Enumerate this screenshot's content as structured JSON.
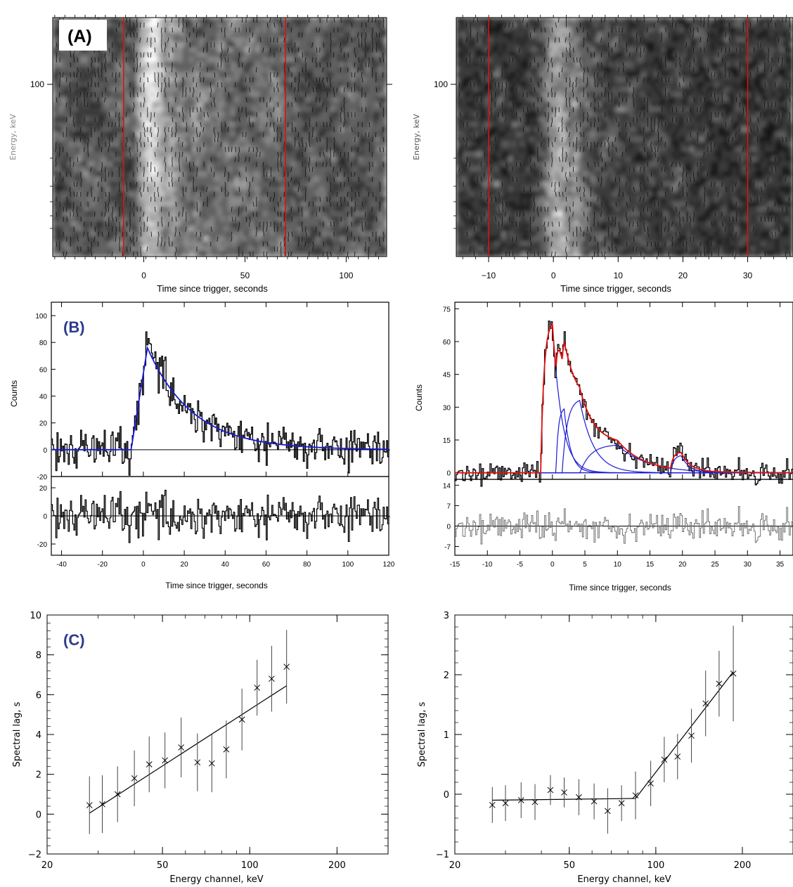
{
  "panels": {
    "A": "(A)",
    "B": "(B)",
    "C": "(C)"
  },
  "colors": {
    "marker_line": "#e01010",
    "fit_blue": "#1a1ad8",
    "fit_red": "#e01010",
    "panel_label": "#2e3a8c",
    "frame": "#000000",
    "axis_text_light": "#888888"
  },
  "chart_data": [
    {
      "id": "A-left",
      "type": "heatmap",
      "xlabel": "Time since trigger, seconds",
      "ylabel": "Energy, keV",
      "x_ticks": [
        "0",
        "50",
        "100"
      ],
      "y_ticks": [
        "100"
      ],
      "xlim": [
        -45,
        120
      ],
      "markers_x": [
        -10,
        70
      ],
      "notes": "energy vs time map, bright emission from 0 to ~25 s"
    },
    {
      "id": "A-right",
      "type": "heatmap",
      "xlabel": "Time since trigger, seconds",
      "ylabel": "Energy, keV",
      "x_ticks": [
        "−10",
        "0",
        "10",
        "20",
        "30"
      ],
      "y_ticks": [
        "100"
      ],
      "xlim": [
        -15,
        37
      ],
      "markers_x": [
        -10,
        30
      ]
    },
    {
      "id": "B-left",
      "type": "line",
      "xlabel": "Time since trigger, seconds",
      "ylabel": "Counts",
      "x_ticks": [
        "-40",
        "-20",
        "0",
        "20",
        "40",
        "60",
        "80",
        "100",
        "120"
      ],
      "y_ticks_main": [
        "-20",
        "0",
        "20",
        "40",
        "60",
        "80",
        "100"
      ],
      "y_ticks_resid": [
        "-20",
        "0",
        "20"
      ],
      "xlim": [
        -45,
        120
      ],
      "ylim": [
        -20,
        110
      ],
      "fit_model": {
        "onset": -6,
        "peak": 2,
        "peak_value": 76,
        "decay_tau": 22
      }
    },
    {
      "id": "B-right",
      "type": "line",
      "xlabel": "Time since trigger, seconds",
      "ylabel": "Counts",
      "x_ticks": [
        "-15",
        "-10",
        "-5",
        "0",
        "5",
        "10",
        "15",
        "20",
        "25",
        "30",
        "35"
      ],
      "y_ticks_main": [
        "0",
        "15",
        "30",
        "45",
        "60",
        "75"
      ],
      "y_ticks_resid": [
        "-7",
        "0",
        "7",
        "14"
      ],
      "xlim": [
        -15,
        37
      ],
      "ylim": [
        -3,
        78
      ],
      "pulses": [
        {
          "t0": 0.0,
          "amp": 70,
          "w": 1.0
        },
        {
          "t0": 1.8,
          "amp": 30,
          "w": 0.7
        },
        {
          "t0": 4.2,
          "amp": 34,
          "w": 1.5
        },
        {
          "t0": 10.0,
          "amp": 13,
          "w": 3.2
        },
        {
          "t0": 19.8,
          "amp": 8,
          "w": 0.9
        }
      ]
    },
    {
      "id": "C-left",
      "type": "scatter",
      "xlabel": "Energy channel, keV",
      "ylabel": "Spectral lag, s",
      "x_scale": "log",
      "xlim": [
        20,
        300
      ],
      "ylim": [
        -2,
        10
      ],
      "x_ticks": [
        "20",
        "50",
        "100",
        "200"
      ],
      "y_ticks": [
        "−2",
        "0",
        "2",
        "4",
        "6",
        "8",
        "10"
      ],
      "points": [
        {
          "x": 28,
          "y": 0.45,
          "err": 1.45
        },
        {
          "x": 31,
          "y": 0.5,
          "err": 1.45
        },
        {
          "x": 35,
          "y": 1.0,
          "err": 1.4
        },
        {
          "x": 40,
          "y": 1.8,
          "err": 1.4
        },
        {
          "x": 45,
          "y": 2.5,
          "err": 1.4
        },
        {
          "x": 51,
          "y": 2.7,
          "err": 1.4
        },
        {
          "x": 58,
          "y": 3.35,
          "err": 1.5
        },
        {
          "x": 66,
          "y": 2.6,
          "err": 1.45
        },
        {
          "x": 74,
          "y": 2.55,
          "err": 1.45
        },
        {
          "x": 83,
          "y": 3.25,
          "err": 1.45
        },
        {
          "x": 94,
          "y": 4.75,
          "err": 1.55
        },
        {
          "x": 106,
          "y": 6.35,
          "err": 1.4
        },
        {
          "x": 119,
          "y": 6.8,
          "err": 1.65
        },
        {
          "x": 134,
          "y": 7.4,
          "err": 1.85
        }
      ],
      "fit_line": [
        {
          "x": 28,
          "y": 0.05
        },
        {
          "x": 134,
          "y": 6.45
        }
      ]
    },
    {
      "id": "C-right",
      "type": "scatter",
      "xlabel": "Energy channel, keV",
      "ylabel": "Spectral lag, s",
      "x_scale": "log",
      "xlim": [
        20,
        300
      ],
      "ylim": [
        -1,
        3
      ],
      "x_ticks": [
        "20",
        "50",
        "100",
        "200"
      ],
      "y_ticks": [
        "−1",
        "0",
        "1",
        "2",
        "3"
      ],
      "points": [
        {
          "x": 27,
          "y": -0.18,
          "err": 0.3
        },
        {
          "x": 30,
          "y": -0.15,
          "err": 0.3
        },
        {
          "x": 34,
          "y": -0.1,
          "err": 0.3
        },
        {
          "x": 38,
          "y": -0.13,
          "err": 0.3
        },
        {
          "x": 43,
          "y": 0.07,
          "err": 0.25
        },
        {
          "x": 48,
          "y": 0.03,
          "err": 0.25
        },
        {
          "x": 54,
          "y": -0.05,
          "err": 0.3
        },
        {
          "x": 61,
          "y": -0.12,
          "err": 0.3
        },
        {
          "x": 68,
          "y": -0.28,
          "err": 0.38
        },
        {
          "x": 76,
          "y": -0.15,
          "err": 0.3
        },
        {
          "x": 85,
          "y": -0.02,
          "err": 0.4
        },
        {
          "x": 96,
          "y": 0.18,
          "err": 0.38
        },
        {
          "x": 107,
          "y": 0.58,
          "err": 0.38
        },
        {
          "x": 119,
          "y": 0.63,
          "err": 0.38
        },
        {
          "x": 133,
          "y": 0.98,
          "err": 0.45
        },
        {
          "x": 149,
          "y": 1.52,
          "err": 0.55
        },
        {
          "x": 166,
          "y": 1.85,
          "err": 0.55
        },
        {
          "x": 186,
          "y": 2.02,
          "err": 0.8
        }
      ],
      "fit_line": [
        {
          "x": 27,
          "y": -0.1
        },
        {
          "x": 85,
          "y": -0.07
        },
        {
          "x": 186,
          "y": 2.05
        }
      ]
    }
  ]
}
